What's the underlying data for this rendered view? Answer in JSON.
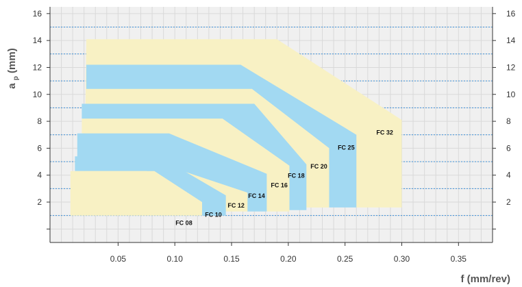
{
  "chart_data": {
    "type": "area",
    "title": "",
    "xlabel": "f (mm/rev)",
    "ylabel_main": "a",
    "ylabel_sub": "p",
    "ylabel_unit": " (mm)",
    "xlim": [
      -0.01,
      0.38
    ],
    "ylim": [
      -1,
      16.5
    ],
    "x_ticks": [
      0.05,
      0.1,
      0.15,
      0.2,
      0.25,
      0.3,
      0.35
    ],
    "x_tick_labels": [
      "0.05",
      "0.10",
      "0.15",
      "0.20",
      "0.25",
      "0.30",
      "0.35"
    ],
    "y_ticks": [
      2,
      4,
      6,
      8,
      10,
      12,
      14,
      16
    ],
    "y_tick_labels": [
      "2",
      "4",
      "6",
      "8",
      "10",
      "12",
      "14",
      "16"
    ],
    "y_ticks_right": [
      2,
      4,
      6,
      8,
      10,
      12,
      14,
      16
    ],
    "y_ticks_left": [
      2,
      4,
      6,
      8,
      10,
      12,
      14,
      16
    ],
    "grid": true,
    "dotted_lines_y": [
      1,
      3,
      5,
      7,
      9,
      11,
      13,
      15
    ],
    "colors": {
      "yellow": "#f8f1c4",
      "blue": "#a2d9f2",
      "grid": "#d9d9d9",
      "dotted": "#3a8fd9",
      "plot_bg": "#f0f0f0"
    },
    "regions": [
      {
        "name": "FC 32",
        "color": "yellow",
        "points": [
          [
            0.022,
            14.1
          ],
          [
            0.19,
            14.1
          ],
          [
            0.3,
            8.1
          ],
          [
            0.3,
            1.6
          ],
          [
            0.26,
            1.6
          ],
          [
            0.26,
            7.0
          ],
          [
            0.235,
            7.0
          ],
          [
            0.235,
            1.6
          ],
          [
            0.02,
            1.6
          ]
        ],
        "label_pos": [
          0.285,
          7.0
        ]
      },
      {
        "name": "FC 25",
        "color": "blue",
        "points": [
          [
            0.022,
            12.2
          ],
          [
            0.158,
            12.2
          ],
          [
            0.26,
            7.0
          ],
          [
            0.26,
            1.6
          ],
          [
            0.236,
            1.6
          ],
          [
            0.236,
            6.0
          ],
          [
            0.168,
            10.4
          ],
          [
            0.022,
            10.4
          ]
        ],
        "label_pos": [
          0.251,
          5.9
        ]
      },
      {
        "name": "FC 20",
        "color": "yellow",
        "points": [
          [
            0.022,
            10.4
          ],
          [
            0.168,
            10.4
          ],
          [
            0.236,
            6.0
          ],
          [
            0.236,
            1.6
          ],
          [
            0.216,
            1.6
          ],
          [
            0.216,
            4.8
          ],
          [
            0.17,
            9.3
          ],
          [
            0.022,
            9.3
          ]
        ],
        "label_pos": [
          0.227,
          4.5
        ]
      },
      {
        "name": "FC 18",
        "color": "blue",
        "points": [
          [
            0.018,
            9.3
          ],
          [
            0.17,
            9.3
          ],
          [
            0.216,
            4.8
          ],
          [
            0.216,
            1.4
          ],
          [
            0.201,
            1.4
          ],
          [
            0.201,
            4.7
          ],
          [
            0.142,
            8.2
          ],
          [
            0.018,
            8.2
          ]
        ],
        "label_pos": [
          0.207,
          3.8
        ]
      },
      {
        "name": "FC 16",
        "color": "yellow",
        "points": [
          [
            0.018,
            8.2
          ],
          [
            0.142,
            8.2
          ],
          [
            0.201,
            4.7
          ],
          [
            0.201,
            1.3
          ],
          [
            0.181,
            1.3
          ],
          [
            0.181,
            4.1
          ],
          [
            0.095,
            7.1
          ],
          [
            0.018,
            7.1
          ]
        ],
        "label_pos": [
          0.192,
          3.1
        ]
      },
      {
        "name": "FC 14",
        "color": "blue",
        "points": [
          [
            0.014,
            7.1
          ],
          [
            0.095,
            7.1
          ],
          [
            0.181,
            4.1
          ],
          [
            0.181,
            1.3
          ],
          [
            0.164,
            1.3
          ],
          [
            0.164,
            2.7
          ],
          [
            0.075,
            5.2
          ],
          [
            0.014,
            5.2
          ]
        ],
        "label_pos": [
          0.172,
          2.3
        ]
      },
      {
        "name": "FC 12",
        "color": "yellow",
        "points": [
          [
            0.012,
            5.2
          ],
          [
            0.075,
            5.2
          ],
          [
            0.164,
            2.7
          ],
          [
            0.164,
            1.3
          ],
          [
            0.145,
            1.3
          ],
          [
            0.145,
            1.6
          ],
          [
            0.088,
            4.4
          ],
          [
            0.012,
            4.4
          ]
        ],
        "label_pos": [
          0.154,
          1.6
        ]
      },
      {
        "name": "FC 10",
        "color": "blue",
        "points": [
          [
            0.012,
            5.4
          ],
          [
            0.086,
            5.4
          ],
          [
            0.145,
            2.5
          ],
          [
            0.145,
            1.0
          ],
          [
            0.124,
            1.0
          ],
          [
            0.124,
            2.0
          ],
          [
            0.082,
            4.3
          ],
          [
            0.012,
            4.3
          ]
        ],
        "label_pos": [
          0.134,
          0.9
        ]
      },
      {
        "name": "FC 08",
        "color": "yellow",
        "points": [
          [
            0.008,
            4.3
          ],
          [
            0.075,
            4.3
          ],
          [
            0.124,
            1.9
          ],
          [
            0.124,
            1.0
          ],
          [
            0.008,
            1.0
          ]
        ],
        "label_pos": [
          0.108,
          0.3
        ]
      }
    ]
  }
}
